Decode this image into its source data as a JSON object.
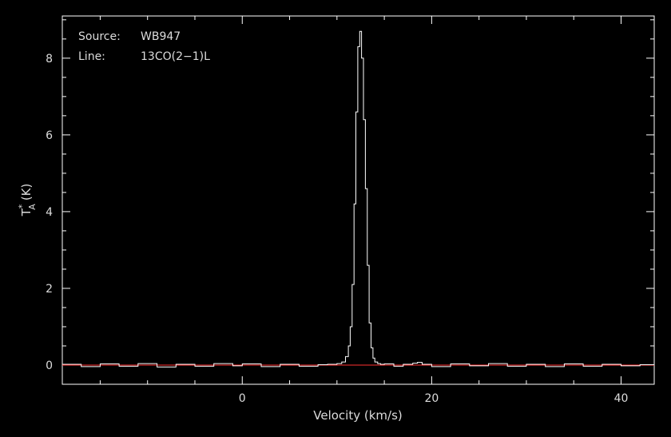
{
  "chart_data": {
    "type": "line",
    "title": "",
    "info": {
      "source_label": "Source:",
      "source_value": "WB947",
      "line_label": "Line:",
      "line_value": "13CO(2−1)L"
    },
    "xlabel": "Velocity (km/s)",
    "ylabel_main": "T",
    "ylabel_sub": "A",
    "ylabel_sup": "*",
    "ylabel_unit": "(K)",
    "xlim": [
      -19,
      43.5
    ],
    "ylim": [
      -0.5,
      9.1
    ],
    "xticks": [
      0,
      20,
      40
    ],
    "xtick_labels": [
      "0",
      "20",
      "40"
    ],
    "yticks": [
      0,
      2,
      4,
      6,
      8
    ],
    "ytick_labels": [
      "0",
      "2",
      "4",
      "6",
      "8"
    ],
    "grid": false,
    "colors": {
      "spectrum": "#ffffff",
      "baseline": "#ff3030",
      "axes": "#ffffff",
      "text": "#dcdcdc"
    },
    "baseline": {
      "y": 0
    },
    "series": [
      {
        "x": [
          -19,
          -17,
          -15,
          -13,
          -11,
          -9,
          -7,
          -5,
          -3,
          -1,
          0,
          2,
          4,
          6,
          8,
          9,
          10,
          10.5,
          10.9,
          11.2,
          11.4,
          11.6,
          11.8,
          12.0,
          12.2,
          12.4,
          12.6,
          12.8,
          13.0,
          13.2,
          13.4,
          13.6,
          13.8,
          14.0,
          14.3,
          14.6,
          15,
          16,
          17,
          18,
          18.5,
          19,
          20,
          22,
          24,
          26,
          28,
          30,
          32,
          34,
          36,
          38,
          40,
          42,
          43.5
        ],
        "y": [
          0.02,
          -0.04,
          0.03,
          -0.03,
          0.04,
          -0.05,
          0.02,
          -0.03,
          0.04,
          -0.02,
          0.03,
          -0.04,
          0.02,
          -0.03,
          0.01,
          0.02,
          0.04,
          0.08,
          0.22,
          0.5,
          1.0,
          2.1,
          4.2,
          6.6,
          8.3,
          8.7,
          8.0,
          6.4,
          4.6,
          2.6,
          1.1,
          0.45,
          0.18,
          0.08,
          0.04,
          0.02,
          0.03,
          -0.03,
          0.02,
          0.05,
          0.07,
          0.02,
          -0.04,
          0.03,
          -0.02,
          0.04,
          -0.03,
          0.02,
          -0.04,
          0.03,
          -0.03,
          0.02,
          -0.02,
          0.01,
          0.0
        ]
      }
    ]
  }
}
